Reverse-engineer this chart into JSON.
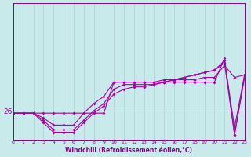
{
  "xlabel": "Windchill (Refroidissement éolien,°C)",
  "background_color": "#c8eaea",
  "line_color": "#aa00aa",
  "grid_color": "#aad4d4",
  "xlim": [
    0,
    23
  ],
  "ylim": [
    24.8,
    30.5
  ],
  "y_tick_val": 26,
  "series": [
    [
      25.9,
      25.9,
      25.9,
      25.9,
      25.9,
      25.9,
      25.9,
      25.9,
      25.9,
      25.9,
      27.2,
      27.2,
      27.2,
      27.2,
      27.2,
      27.3,
      27.3,
      27.3,
      27.3,
      27.4,
      27.4,
      27.9,
      27.4,
      27.5
    ],
    [
      25.9,
      25.9,
      25.9,
      25.7,
      25.4,
      25.4,
      25.4,
      25.9,
      26.3,
      26.6,
      27.2,
      27.2,
      27.2,
      27.2,
      27.2,
      27.2,
      27.2,
      27.2,
      27.2,
      27.2,
      27.2,
      28.2,
      25.0,
      27.5
    ],
    [
      25.9,
      25.9,
      25.9,
      25.6,
      25.2,
      25.2,
      25.2,
      25.6,
      26.0,
      26.3,
      26.9,
      27.1,
      27.1,
      27.1,
      27.1,
      27.2,
      27.3,
      27.4,
      27.5,
      27.6,
      27.7,
      28.1,
      25.3,
      27.5
    ],
    [
      25.9,
      25.9,
      25.9,
      25.5,
      25.1,
      25.1,
      25.1,
      25.5,
      25.9,
      26.2,
      26.7,
      26.9,
      27.0,
      27.0,
      27.1,
      27.2,
      27.3,
      27.4,
      27.5,
      27.6,
      27.7,
      28.0,
      25.0,
      27.4
    ]
  ],
  "marker_size": 2.0,
  "linewidth": 0.8,
  "tick_color": "#880088",
  "spine_color": "#880088",
  "xtick_fontsize": 4.5,
  "ytick_fontsize": 6.5,
  "xlabel_fontsize": 5.5
}
